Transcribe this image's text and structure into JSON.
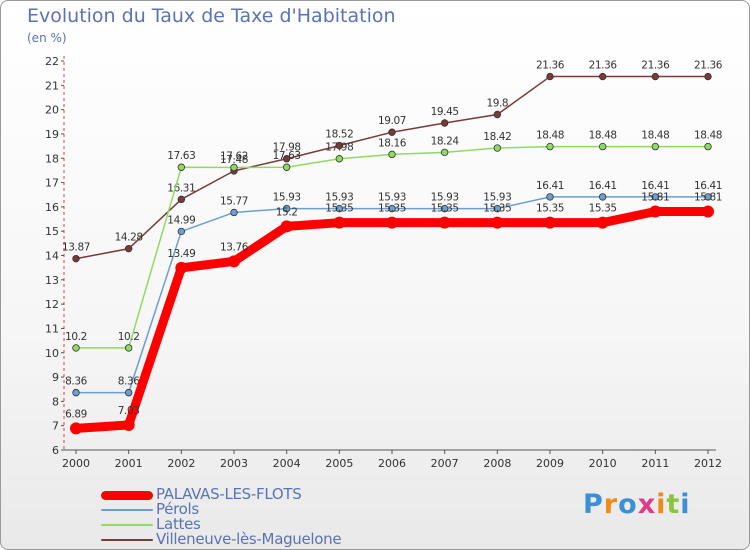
{
  "header": {
    "title": "Evolution du Taux de Taxe d'Habitation",
    "subtitle": "(en %)"
  },
  "logo": {
    "text": "Proxiti",
    "letter_colors": [
      "#3a8fd6",
      "#f08a1c",
      "#3a8fd6",
      "#e23a8a",
      "#f08a1c",
      "#8bc43f",
      "#3a8fd6"
    ]
  },
  "chart_data": {
    "type": "line",
    "x": [
      "2000",
      "2001",
      "2002",
      "2003",
      "2004",
      "2005",
      "2006",
      "2007",
      "2008",
      "2009",
      "2010",
      "2011",
      "2012"
    ],
    "ylim": [
      6,
      22
    ],
    "yticks": [
      "6",
      "7",
      "8",
      "9",
      "10",
      "11",
      "12",
      "13",
      "14",
      "15",
      "16",
      "17",
      "18",
      "19",
      "20",
      "21",
      "22"
    ],
    "grid": false,
    "legend_position": "bottom-left",
    "series": [
      {
        "name": "PALAVAS-LES-FLOTS",
        "color": "#ff0000",
        "values": [
          6.89,
          7.03,
          13.49,
          13.76,
          15.2,
          15.35,
          15.35,
          15.35,
          15.35,
          15.35,
          15.35,
          15.81,
          15.81
        ],
        "labels": [
          "6.89",
          "7.03",
          "13.49",
          "13.76",
          "15.2",
          "15.35",
          "15.35",
          "15.35",
          "15.35",
          "15.35",
          "15.35",
          "15.81",
          "15.81"
        ]
      },
      {
        "name": "Pérols",
        "color": "#6a9fd0",
        "values": [
          8.36,
          8.36,
          14.99,
          15.77,
          15.93,
          15.93,
          15.93,
          15.93,
          15.93,
          16.41,
          16.41,
          16.41,
          16.41
        ],
        "labels": [
          "8.36",
          "8.36",
          "14.99",
          "15.77",
          "15.93",
          "15.93",
          "15.93",
          "15.93",
          "15.93",
          "16.41",
          "16.41",
          "16.41",
          "16.41"
        ]
      },
      {
        "name": "Lattes",
        "color": "#8fdb62",
        "values": [
          10.2,
          10.2,
          17.63,
          17.62,
          17.63,
          17.98,
          18.16,
          18.24,
          18.42,
          18.48,
          18.48,
          18.48,
          18.48
        ],
        "labels": [
          "10.2",
          "10.2",
          "17.63",
          "17.62",
          "17.63",
          "17.98",
          "18.16",
          "18.24",
          "18.42",
          "18.48",
          "18.48",
          "18.48",
          "18.48"
        ]
      },
      {
        "name": "Villeneuve-lès-Maguelone",
        "color": "#7a3a3a",
        "values": [
          13.87,
          14.28,
          16.31,
          17.48,
          17.98,
          18.52,
          19.07,
          19.45,
          19.8,
          21.36,
          21.36,
          21.36,
          21.36
        ],
        "labels": [
          "13.87",
          "14.28",
          "16.31",
          "17.48",
          "17.98",
          "18.52",
          "19.07",
          "19.45",
          "19.8",
          "21.36",
          "21.36",
          "21.36",
          "21.36"
        ]
      }
    ]
  }
}
